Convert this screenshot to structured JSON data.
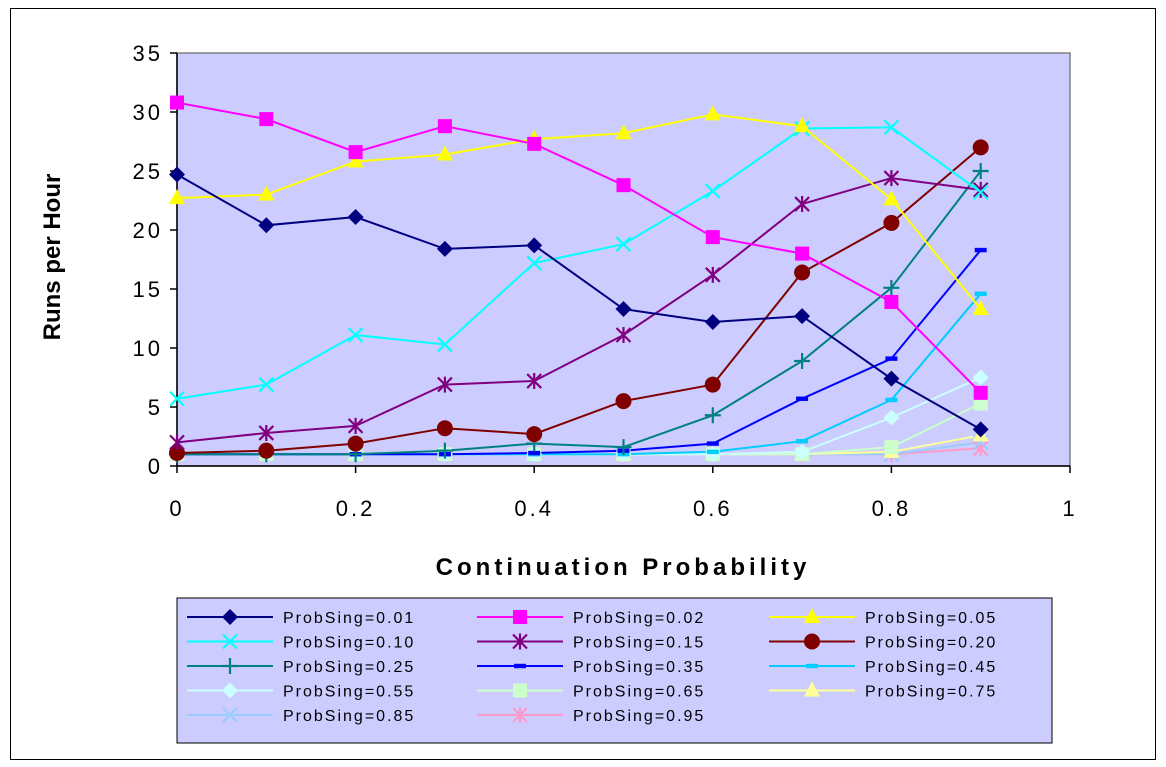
{
  "chart_data": {
    "type": "line",
    "xlabel": "Continuation Probability",
    "ylabel": "Runs per Hour",
    "xlim": [
      0,
      1
    ],
    "ylim": [
      0,
      35
    ],
    "x_ticks": [
      "0",
      "0.2",
      "0.4",
      "0.6",
      "0.8",
      "1"
    ],
    "x_tick_values": [
      0,
      0.2,
      0.4,
      0.6,
      0.8,
      1
    ],
    "y_ticks": [
      "0",
      "5",
      "10",
      "15",
      "20",
      "25",
      "30",
      "35"
    ],
    "y_tick_values": [
      0,
      5,
      10,
      15,
      20,
      25,
      30,
      35
    ],
    "plot_background": "#CCCCFF",
    "grid": false,
    "legend_position": "bottom",
    "x": [
      0,
      0.1,
      0.2,
      0.3,
      0.4,
      0.5,
      0.6,
      0.7,
      0.8,
      0.9
    ],
    "series": [
      {
        "name": "ProbSing=0.01",
        "color": "#000080",
        "marker": "diamond",
        "values": [
          24.7,
          20.4,
          21.1,
          18.4,
          18.7,
          13.3,
          12.2,
          12.7,
          7.4,
          3.1
        ]
      },
      {
        "name": "ProbSing=0.02",
        "color": "#FF00FF",
        "marker": "square",
        "values": [
          30.8,
          29.4,
          26.6,
          28.8,
          27.3,
          23.8,
          19.4,
          18.0,
          13.9,
          6.2
        ]
      },
      {
        "name": "ProbSing=0.05",
        "color": "#FFFF00",
        "marker": "triangle",
        "values": [
          22.7,
          23.0,
          25.8,
          26.4,
          27.7,
          28.2,
          29.8,
          28.8,
          22.6,
          13.3
        ]
      },
      {
        "name": "ProbSing=0.10",
        "color": "#00FFFF",
        "marker": "x",
        "values": [
          5.7,
          6.9,
          11.1,
          10.3,
          17.2,
          18.8,
          23.3,
          28.6,
          28.7,
          23.2
        ]
      },
      {
        "name": "ProbSing=0.15",
        "color": "#800080",
        "marker": "star",
        "values": [
          2.0,
          2.8,
          3.4,
          6.9,
          7.2,
          11.1,
          16.2,
          22.2,
          24.4,
          23.4
        ]
      },
      {
        "name": "ProbSing=0.20",
        "color": "#800000",
        "marker": "circle",
        "values": [
          1.1,
          1.3,
          1.9,
          3.2,
          2.7,
          5.5,
          6.9,
          16.4,
          20.6,
          27.0
        ]
      },
      {
        "name": "ProbSing=0.25",
        "color": "#008080",
        "marker": "plus",
        "values": [
          1.0,
          1.0,
          1.0,
          1.3,
          1.9,
          1.6,
          4.3,
          8.9,
          15.1,
          25.0
        ]
      },
      {
        "name": "ProbSing=0.35",
        "color": "#0000FF",
        "marker": "dash",
        "values": [
          1.0,
          1.0,
          1.0,
          1.0,
          1.1,
          1.3,
          1.9,
          5.7,
          9.1,
          18.3
        ]
      },
      {
        "name": "ProbSing=0.45",
        "color": "#00CCFF",
        "marker": "dash",
        "values": [
          1.0,
          1.0,
          1.0,
          1.0,
          1.0,
          1.0,
          1.2,
          2.1,
          5.6,
          14.6
        ]
      },
      {
        "name": "ProbSing=0.55",
        "color": "#CCFFFF",
        "marker": "diamond",
        "values": [
          1.0,
          1.0,
          1.0,
          1.0,
          1.0,
          1.0,
          1.0,
          1.2,
          4.1,
          7.5
        ]
      },
      {
        "name": "ProbSing=0.65",
        "color": "#CCFFCC",
        "marker": "square",
        "values": [
          1.0,
          1.0,
          1.0,
          1.0,
          1.0,
          1.0,
          1.0,
          1.0,
          1.6,
          5.3
        ]
      },
      {
        "name": "ProbSing=0.75",
        "color": "#FFFF99",
        "marker": "triangle",
        "values": [
          1.0,
          1.0,
          1.0,
          1.0,
          1.0,
          1.0,
          1.0,
          1.0,
          1.2,
          2.6
        ]
      },
      {
        "name": "ProbSing=0.85",
        "color": "#99CCFF",
        "marker": "x",
        "values": [
          1.0,
          1.0,
          1.0,
          1.0,
          1.0,
          1.0,
          1.0,
          1.0,
          1.0,
          2.0
        ]
      },
      {
        "name": "ProbSing=0.95",
        "color": "#FF99CC",
        "marker": "star",
        "values": [
          1.0,
          1.0,
          1.0,
          1.0,
          1.0,
          1.0,
          1.0,
          1.0,
          1.0,
          1.5
        ]
      }
    ]
  }
}
